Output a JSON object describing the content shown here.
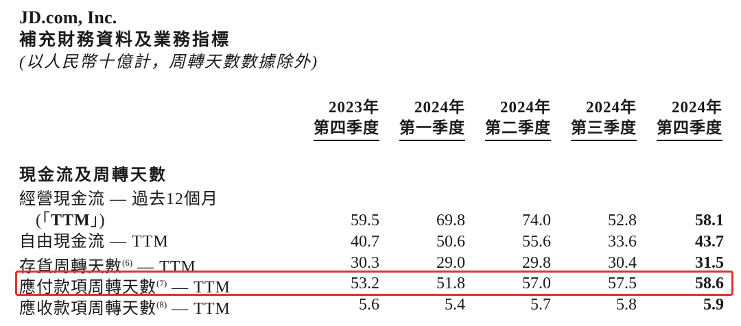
{
  "header": {
    "company": "JD.com, Inc.",
    "title": "補充財務資料及業務指標",
    "unit_note": "(以人民幣十億計，周轉天數數據除外)"
  },
  "columns": [
    {
      "year": "2023年",
      "quarter": "第四季度"
    },
    {
      "year": "2024年",
      "quarter": "第一季度"
    },
    {
      "year": "2024年",
      "quarter": "第二季度"
    },
    {
      "year": "2024年",
      "quarter": "第三季度"
    },
    {
      "year": "2024年",
      "quarter": "第四季度"
    }
  ],
  "section": {
    "title": "現金流及周轉天數"
  },
  "rows": [
    {
      "label_line1": "經營現金流 — 過去12個月",
      "label_line2_pre": "(「",
      "label_line2_bold": "TTM",
      "label_line2_post": "」)",
      "values": [
        "59.5",
        "69.8",
        "74.0",
        "52.8",
        "58.1"
      ]
    },
    {
      "label": "自由現金流 — TTM",
      "values": [
        "40.7",
        "50.6",
        "55.6",
        "33.6",
        "43.7"
      ]
    },
    {
      "label_pre": "存貨周轉天數",
      "sup": "(6)",
      "label_post": " — TTM",
      "values": [
        "30.3",
        "29.0",
        "29.8",
        "30.4",
        "31.5"
      ]
    },
    {
      "label_pre": "應付款項周轉天數",
      "sup": "(7)",
      "label_post": " — TTM",
      "values": [
        "53.2",
        "51.8",
        "57.0",
        "57.5",
        "58.6"
      ],
      "highlighted": true
    },
    {
      "label_pre": "應收款項周轉天數",
      "sup": "(8)",
      "label_post": " — TTM",
      "values": [
        "5.6",
        "5.4",
        "5.7",
        "5.8",
        "5.9"
      ]
    }
  ],
  "colors": {
    "highlight": "#e0322d",
    "text": "#1a1a1a"
  }
}
